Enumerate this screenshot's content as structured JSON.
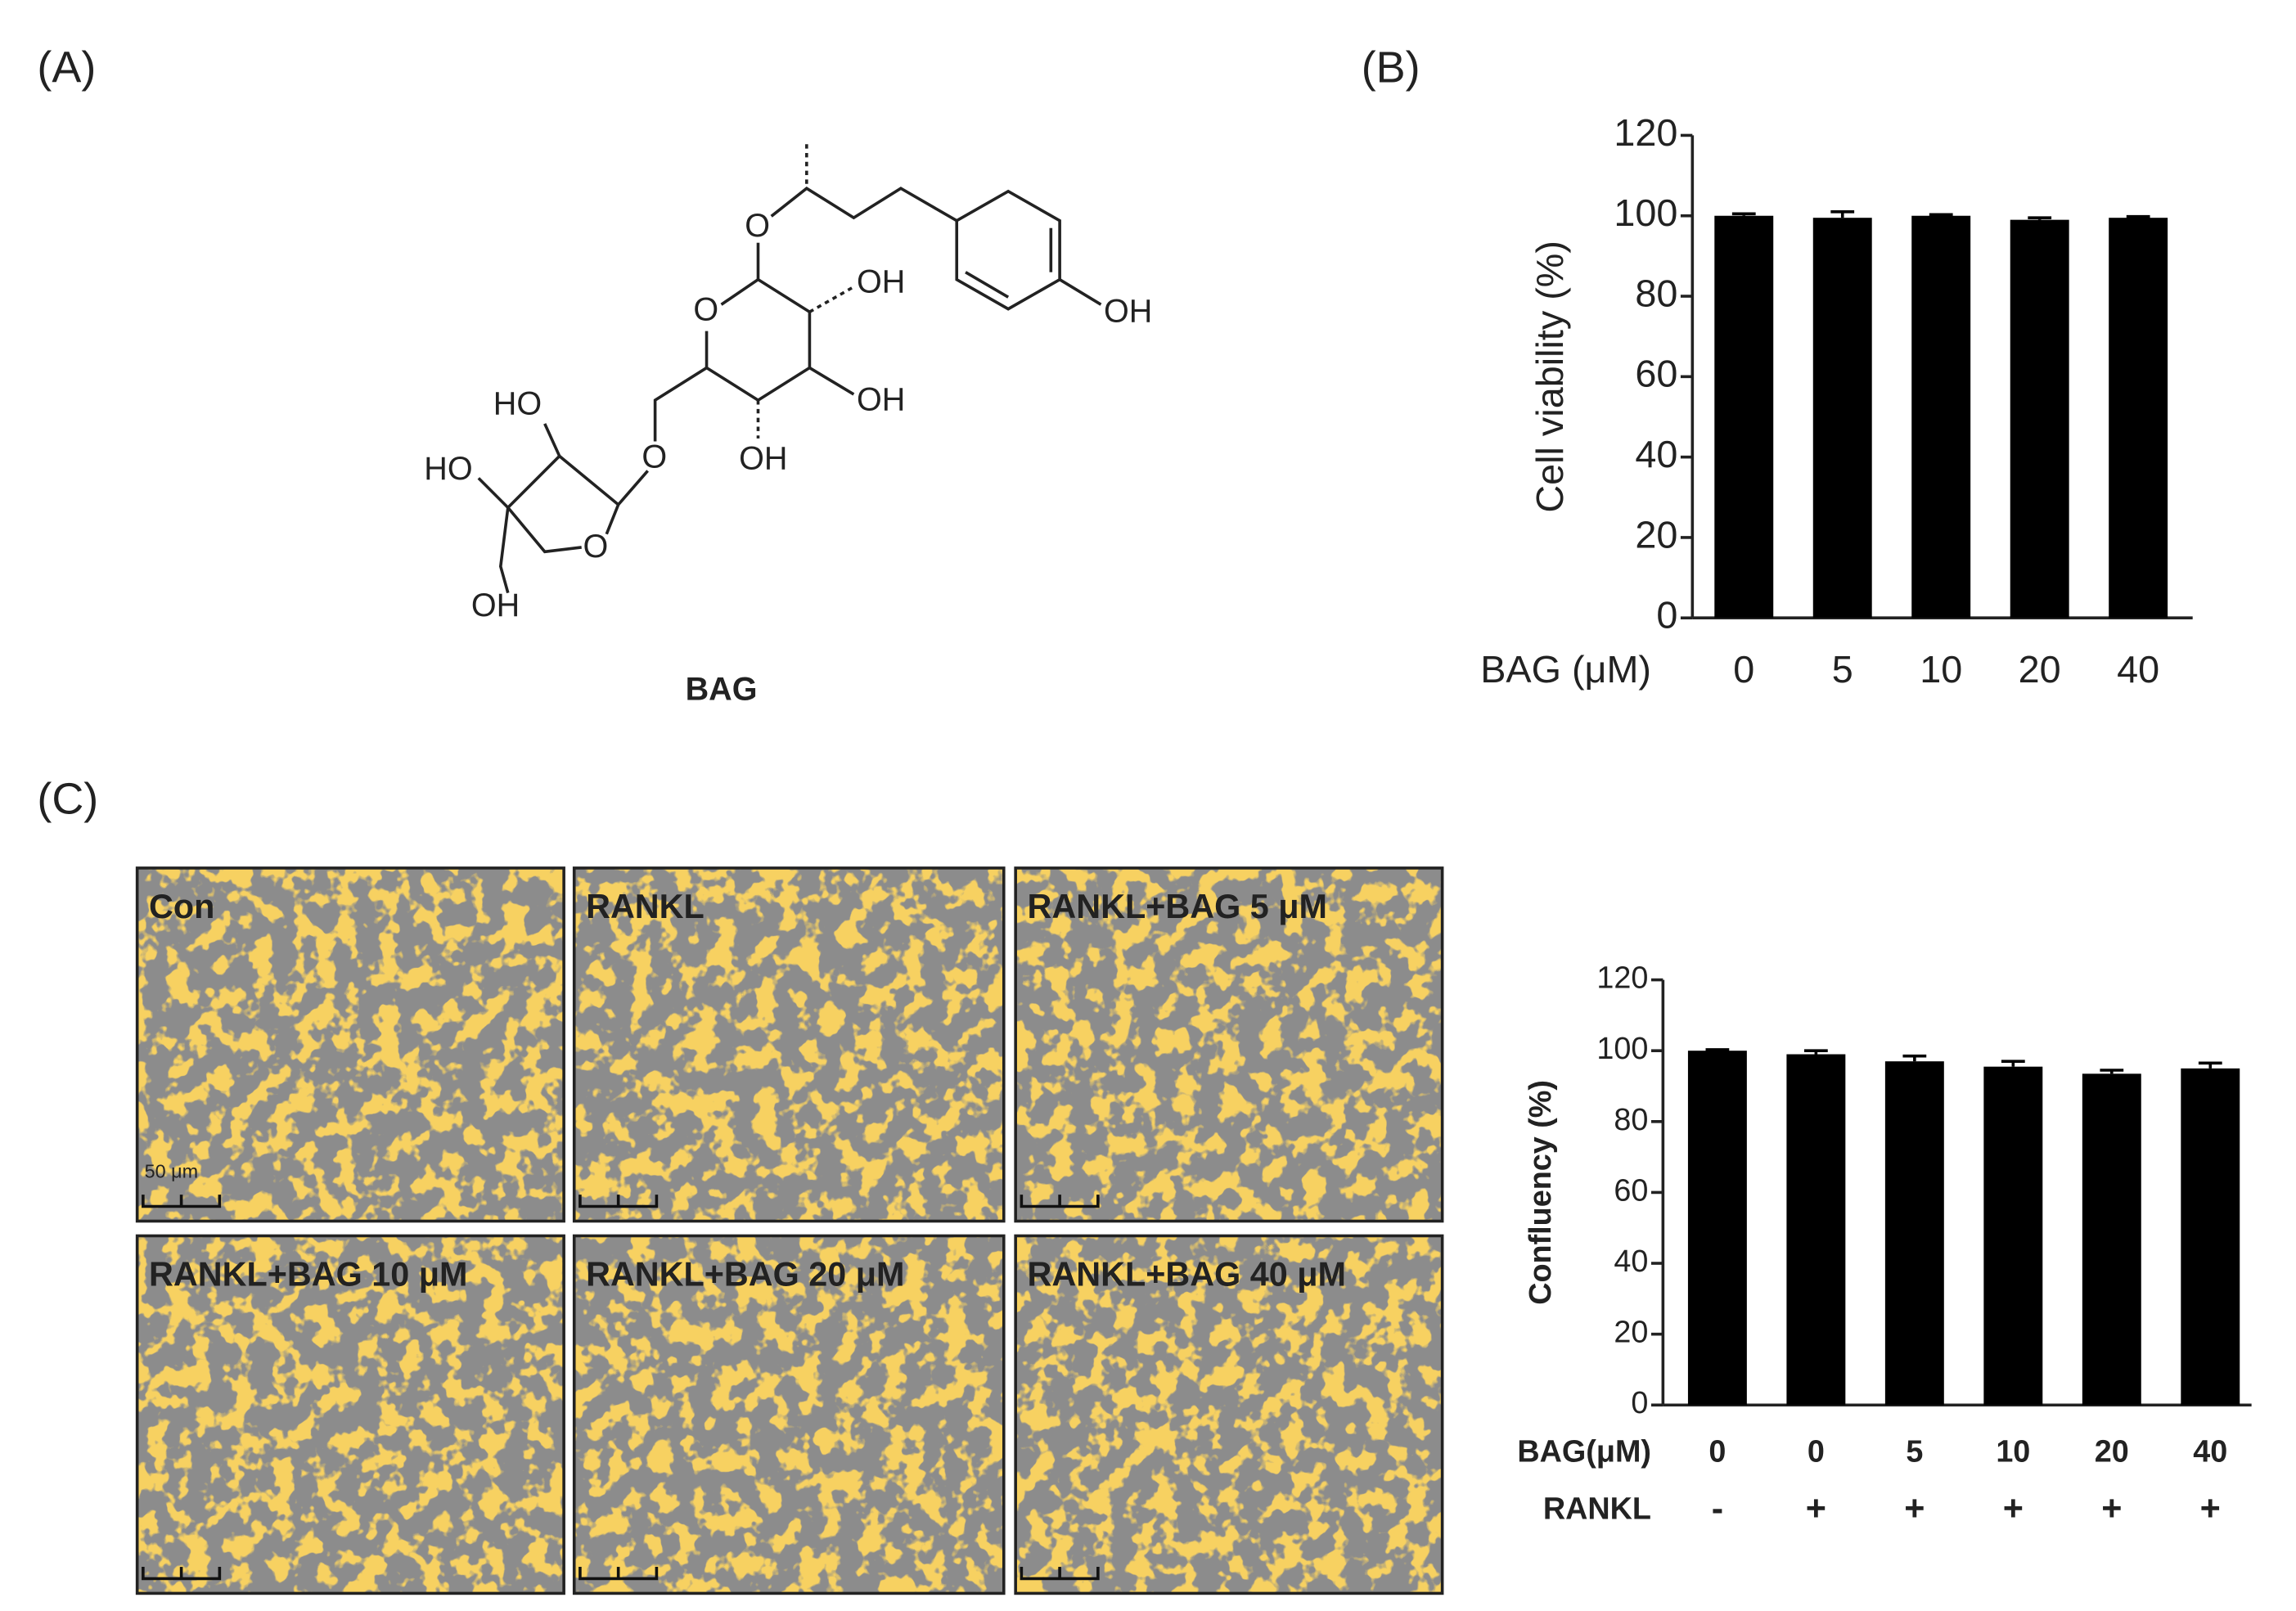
{
  "panel_labels": [
    "(A)",
    "(B)",
    "(C)"
  ],
  "structure": {
    "name": "BAG",
    "labels": [
      "OH",
      "OH",
      "OH",
      "HO",
      "OH",
      "HO",
      "O",
      "O",
      "O",
      "O",
      "OH"
    ]
  },
  "images": {
    "labels": [
      "Con",
      "RANKL",
      "RANKL+BAG 5 μM",
      "RANKL+BAG 10 μM",
      "RANKL+BAG 20 μM",
      "RANKL+BAG 40 μM"
    ],
    "scale_bar": "50 μm"
  },
  "chart_data": [
    {
      "type": "bar",
      "ylabel": "Cell viability (%)",
      "xlabel": "BAG (μM)",
      "categories": [
        "0",
        "5",
        "10",
        "20",
        "40"
      ],
      "values": [
        100,
        99.5,
        100,
        99,
        99.5
      ],
      "errors": [
        0.5,
        1.5,
        0.3,
        0.5,
        0.3
      ],
      "color": "#000000",
      "ylim": [
        0,
        120
      ],
      "yticks": [
        0,
        20,
        40,
        60,
        80,
        100,
        120
      ]
    },
    {
      "type": "bar",
      "ylabel": "Confluency (%)",
      "xlabel": "BAG(μM)",
      "xlabel2": "RANKL",
      "categories": [
        "0",
        "0",
        "5",
        "10",
        "20",
        "40"
      ],
      "categories2": [
        "-",
        "+",
        "+",
        "+",
        "+",
        "+"
      ],
      "values": [
        100,
        99,
        97,
        95.5,
        93.5,
        95
      ],
      "errors": [
        0.3,
        1,
        1.5,
        1.5,
        1,
        1.5
      ],
      "color": "#000000",
      "ylim": [
        0,
        120
      ],
      "yticks": [
        0,
        20,
        40,
        60,
        80,
        100,
        120
      ]
    }
  ]
}
